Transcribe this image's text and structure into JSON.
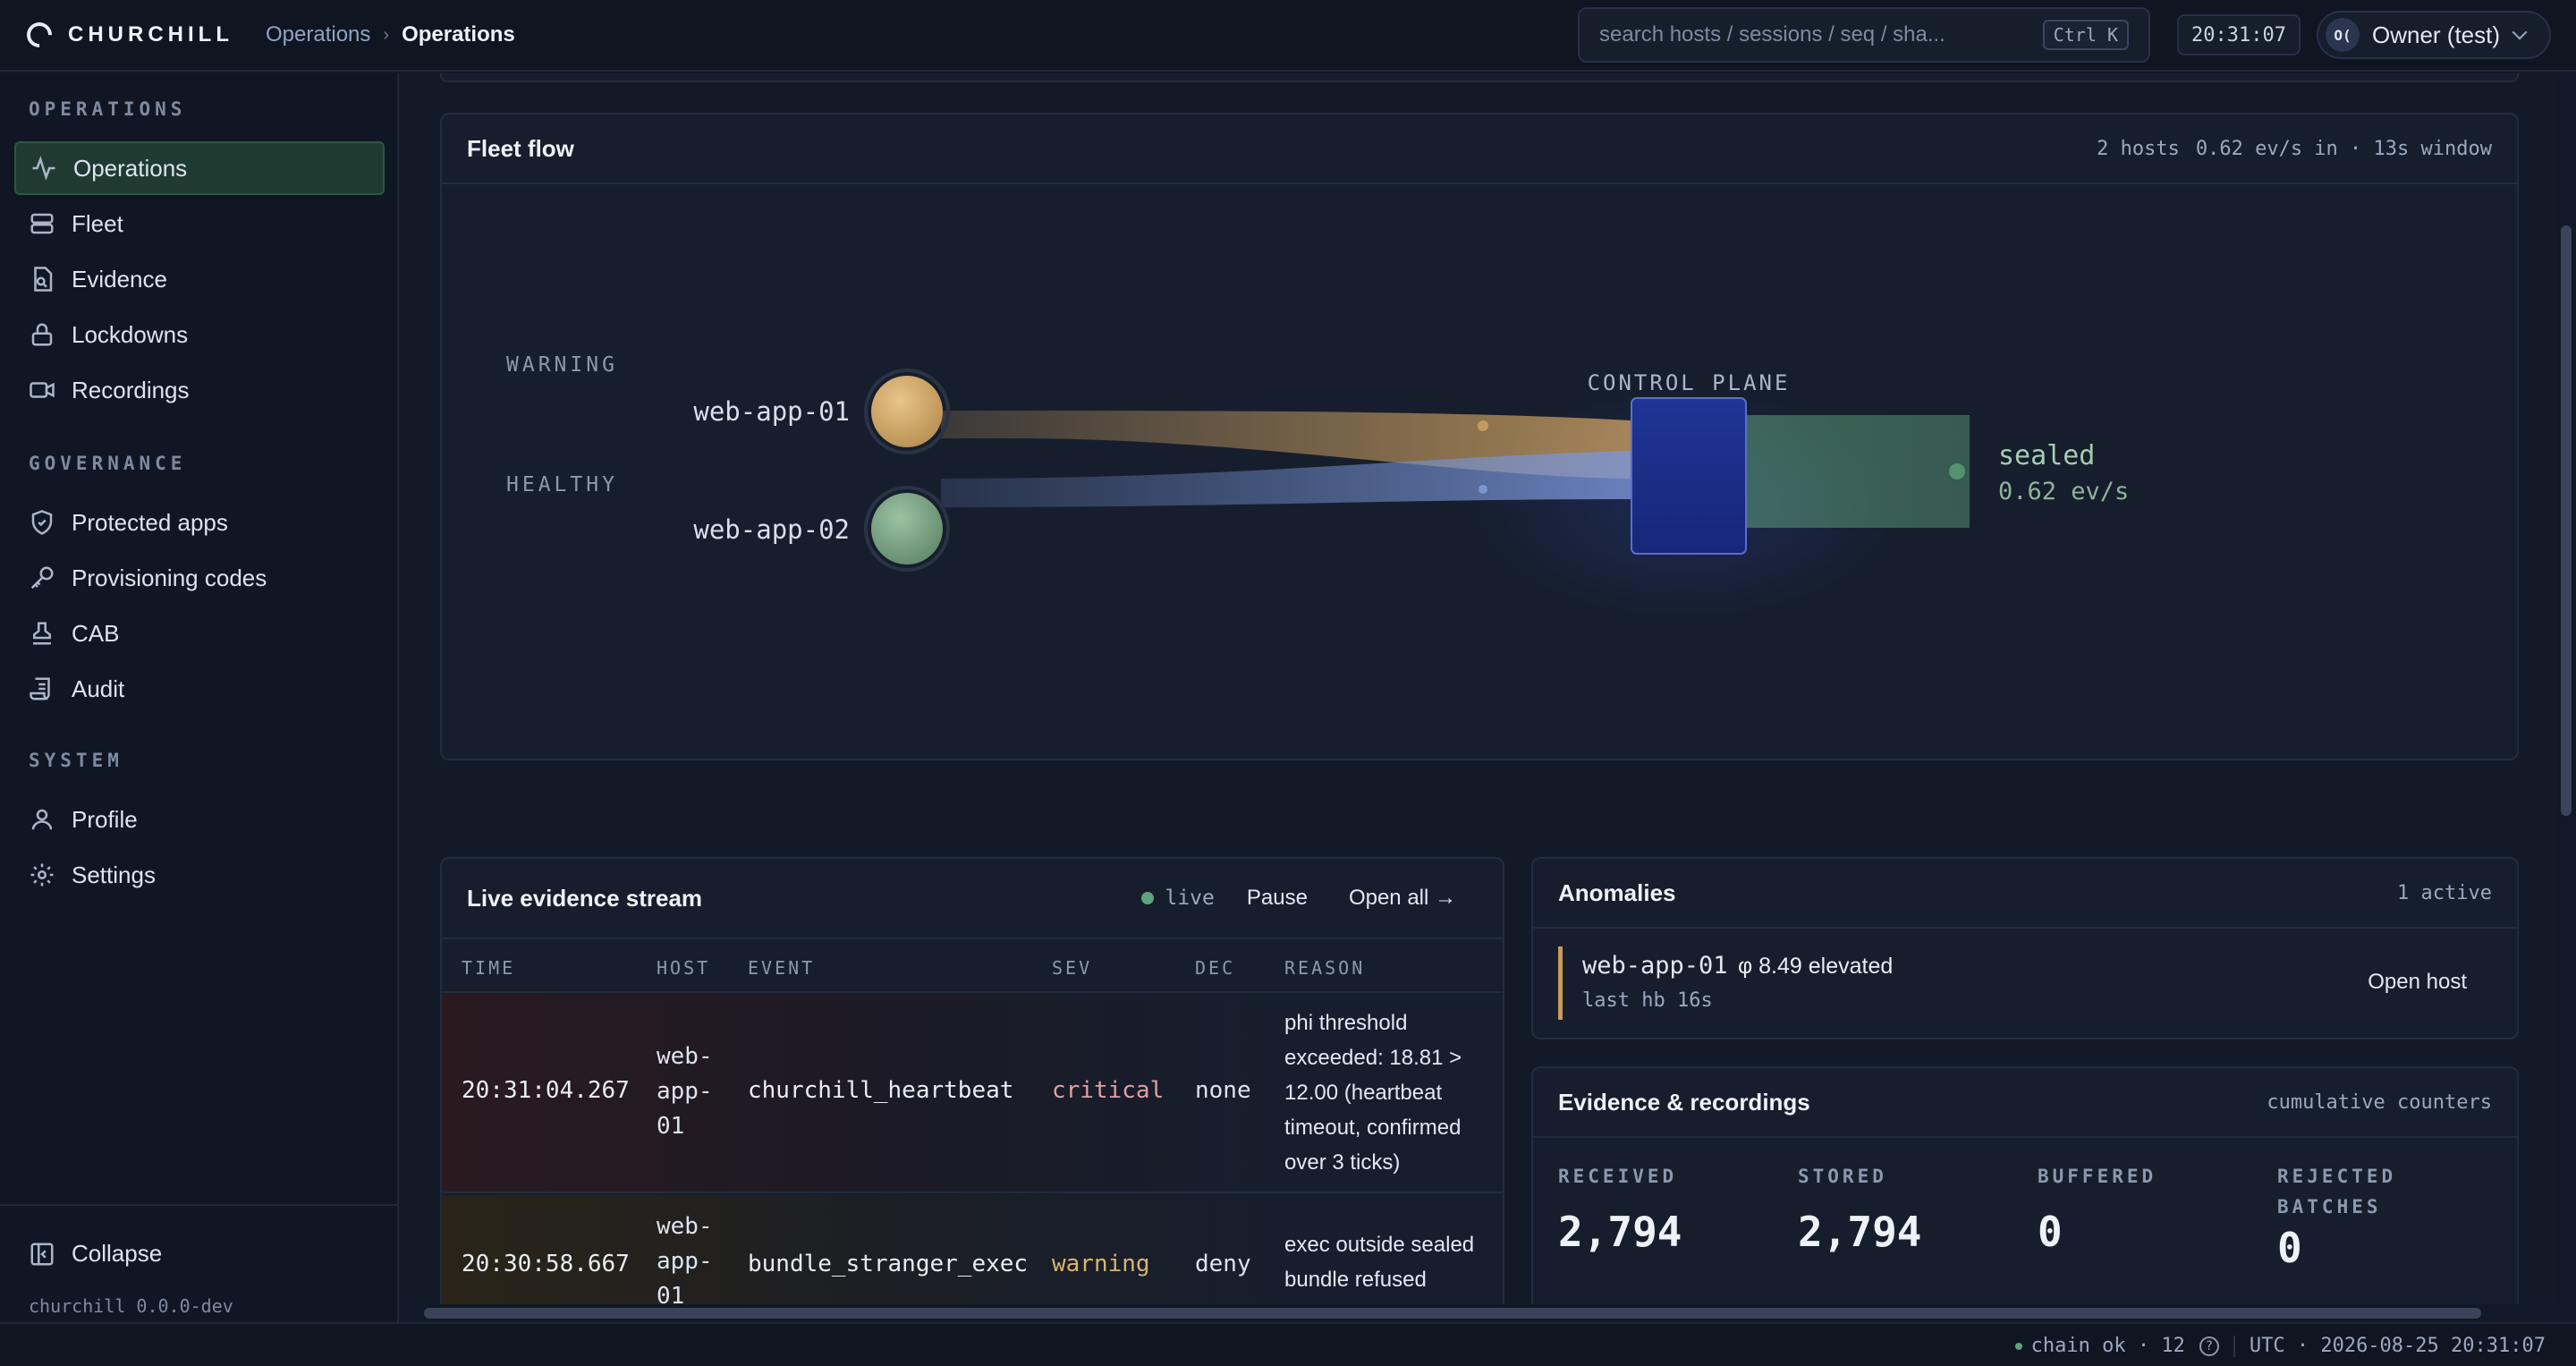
{
  "app": {
    "brand": "CHURCHILL",
    "version": "churchill 0.0.0-dev"
  },
  "breadcrumbs": [
    "Operations",
    "Operations"
  ],
  "search": {
    "placeholder": "search hosts / sessions / seq / sha...",
    "shortcut": "Ctrl K"
  },
  "clock": "20:31:07",
  "user": {
    "initials": "O(",
    "name": "Owner (test)"
  },
  "sidebar": {
    "sections": [
      {
        "title": "OPERATIONS",
        "items": [
          {
            "label": "Operations",
            "icon": "activity-icon",
            "active": true
          },
          {
            "label": "Fleet",
            "icon": "server-icon"
          },
          {
            "label": "Evidence",
            "icon": "file-search-icon"
          },
          {
            "label": "Lockdowns",
            "icon": "lock-icon"
          },
          {
            "label": "Recordings",
            "icon": "video-icon"
          }
        ]
      },
      {
        "title": "GOVERNANCE",
        "items": [
          {
            "label": "Protected apps",
            "icon": "shield-icon"
          },
          {
            "label": "Provisioning codes",
            "icon": "key-icon"
          },
          {
            "label": "CAB",
            "icon": "stamp-icon"
          },
          {
            "label": "Audit",
            "icon": "scroll-icon"
          }
        ]
      },
      {
        "title": "SYSTEM",
        "items": [
          {
            "label": "Profile",
            "icon": "user-icon"
          },
          {
            "label": "Settings",
            "icon": "gear-icon"
          }
        ]
      }
    ],
    "collapse_label": "Collapse"
  },
  "fleet_flow": {
    "title": "Fleet flow",
    "meta_hosts": "2 hosts",
    "meta_rate": "0.62 ev/s in · 13s window",
    "groups": [
      "WARNING",
      "HEALTHY"
    ],
    "hosts": [
      {
        "name": "web-app-01",
        "status": "warning",
        "color": "#d4a563"
      },
      {
        "name": "web-app-02",
        "status": "healthy",
        "color": "#7fa88a"
      }
    ],
    "control_plane_label": "CONTROL PLANE",
    "sink_label": "sealed",
    "sink_rate": "0.62 ev/s"
  },
  "stream": {
    "title": "Live evidence stream",
    "live_label": "live",
    "pause_label": "Pause",
    "open_all_label": "Open all →",
    "columns": [
      "TIME",
      "HOST",
      "EVENT",
      "SEV",
      "DEC",
      "REASON"
    ],
    "rows": [
      {
        "time": "20:31:04.267",
        "host": "web-app-01",
        "event": "churchill_heartbeat",
        "sev": "critical",
        "dec": "none",
        "reason": "phi threshold exceeded: 18.81 > 12.00 (heartbeat timeout, confirmed over 3 ticks)"
      },
      {
        "time": "20:30:58.667",
        "host": "web-app-01",
        "event": "bundle_stranger_exec",
        "sev": "warning",
        "dec": "deny",
        "reason": "exec outside sealed bundle refused"
      }
    ],
    "sev_colors": {
      "critical": "#e0a0a0",
      "warning": "#d8b46e"
    }
  },
  "anomalies": {
    "title": "Anomalies",
    "count": "1 active",
    "items": [
      {
        "host": "web-app-01",
        "detail": "φ 8.49 elevated",
        "last_hb": "last hb 16s",
        "action": "Open host"
      }
    ]
  },
  "evidence": {
    "title": "Evidence & recordings",
    "meta": "cumulative counters",
    "stats": [
      {
        "label": "RECEIVED",
        "value": "2,794"
      },
      {
        "label": "STORED",
        "value": "2,794"
      },
      {
        "label": "BUFFERED",
        "value": "0"
      },
      {
        "label": "REJECTED BATCHES",
        "value": "0"
      }
    ]
  },
  "status": {
    "chain": "chain ok · 12",
    "help": "?",
    "time": "UTC · 2026-08-25 20:31:07"
  }
}
